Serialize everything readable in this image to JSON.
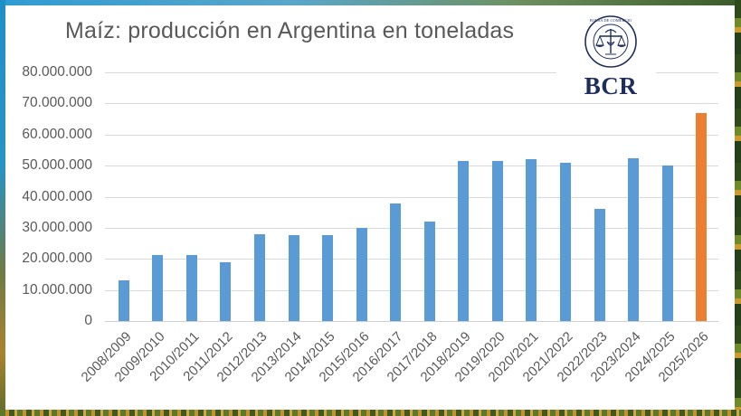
{
  "title": "Maíz: producción en Argentina en toneladas",
  "logo": {
    "text": "BCR",
    "seal_icon": "bolsa-de-comercio-rosario-seal-icon",
    "color": "#1d2e5c"
  },
  "colors": {
    "bar": "#5b9bd5",
    "highlight_bar": "#ed7d31",
    "gridline": "#d9d9d9",
    "text": "#595959"
  },
  "y_axis": {
    "ticks": [
      "0",
      "10.000.000",
      "20.000.000",
      "30.000.000",
      "40.000.000",
      "50.000.000",
      "60.000.000",
      "70.000.000",
      "80.000.000"
    ]
  },
  "x_axis": {
    "labels": [
      "2008/2009",
      "2009/2010",
      "2010/2011",
      "2011/2012",
      "2012/2013",
      "2013/2014",
      "2014/2015",
      "2015/2016",
      "2016/2017",
      "2017/2018",
      "2018/2019",
      "2019/2020",
      "2020/2021",
      "2021/2022",
      "2022/2023",
      "2023/2024",
      "2024/2025",
      "2025/2026"
    ]
  },
  "chart_data": {
    "type": "bar",
    "title": "Maíz: producción en Argentina en toneladas",
    "xlabel": "",
    "ylabel": "",
    "ylim": [
      0,
      80000000
    ],
    "yticks": [
      0,
      10000000,
      20000000,
      30000000,
      40000000,
      50000000,
      60000000,
      70000000,
      80000000
    ],
    "grid": true,
    "legend": null,
    "categories": [
      "2008/2009",
      "2009/2010",
      "2010/2011",
      "2011/2012",
      "2012/2013",
      "2013/2014",
      "2014/2015",
      "2015/2016",
      "2016/2017",
      "2017/2018",
      "2018/2019",
      "2019/2020",
      "2020/2021",
      "2021/2022",
      "2022/2023",
      "2023/2024",
      "2024/2025",
      "2025/2026"
    ],
    "values": [
      13000000,
      21200000,
      21200000,
      19000000,
      28000000,
      27500000,
      27600000,
      30000000,
      37800000,
      32000000,
      51500000,
      51500000,
      52000000,
      51000000,
      36000000,
      52500000,
      50000000,
      67000000
    ],
    "highlighted": [
      "2025/2026"
    ],
    "series_colors": {
      "default": "#5b9bd5",
      "highlighted": "#ed7d31"
    }
  }
}
